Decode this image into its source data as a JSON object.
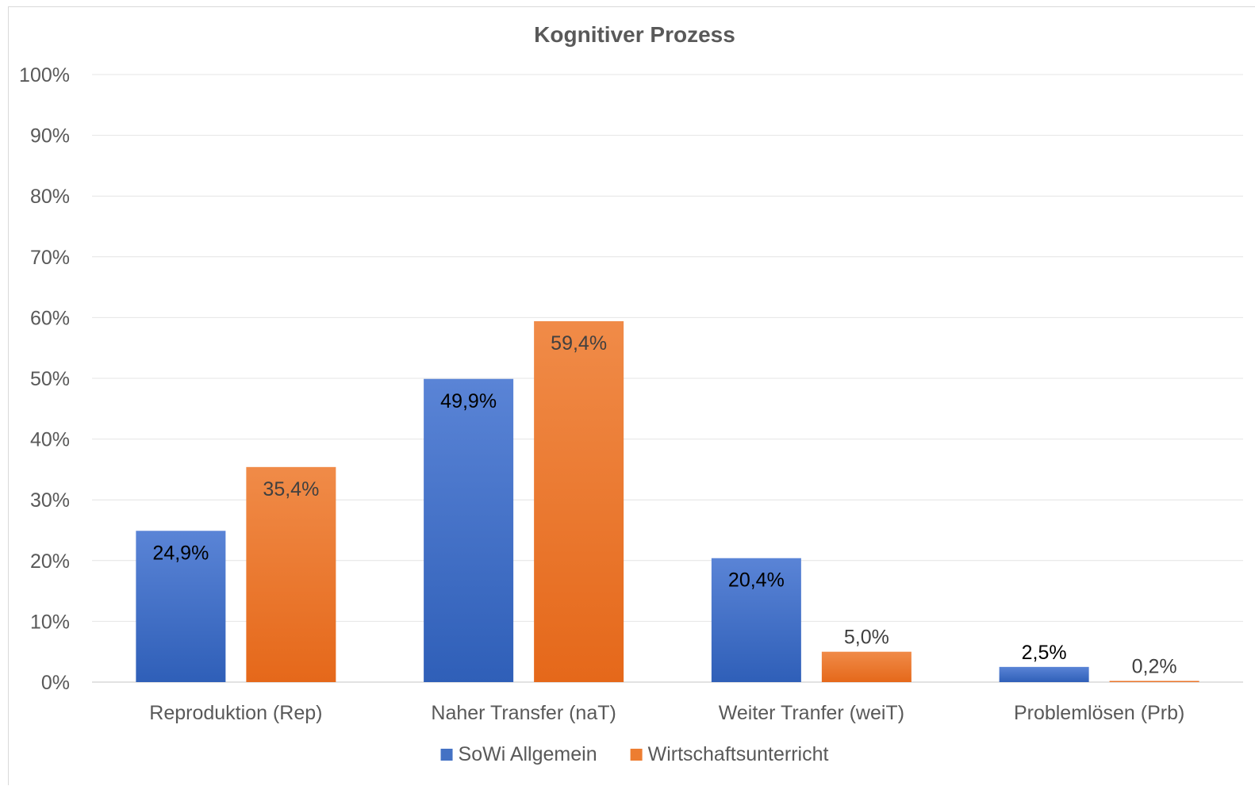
{
  "chart_data": {
    "type": "bar",
    "title": "Kognitiver Prozess",
    "xlabel": "",
    "ylabel": "",
    "ylim": [
      0,
      100
    ],
    "yticks": [
      "0%",
      "10%",
      "20%",
      "30%",
      "40%",
      "50%",
      "60%",
      "70%",
      "80%",
      "90%",
      "100%"
    ],
    "categories": [
      "Reproduktion (Rep)",
      "Naher Transfer (naT)",
      "Weiter Tranfer (weiT)",
      "Problemlösen (Prb)"
    ],
    "series": [
      {
        "name": "SoWi Allgemein",
        "color": "#4472c4",
        "values": [
          24.9,
          49.9,
          20.4,
          2.5
        ],
        "labels": [
          "24,9%",
          "49,9%",
          "20,4%",
          "2,5%"
        ]
      },
      {
        "name": "Wirtschaftsunterricht",
        "color": "#ed7d31",
        "values": [
          35.4,
          59.4,
          5.0,
          0.2
        ],
        "labels": [
          "35,4%",
          "59,4%",
          "5,0%",
          "0,2%"
        ]
      }
    ],
    "grid": true,
    "legend": "bottom"
  }
}
